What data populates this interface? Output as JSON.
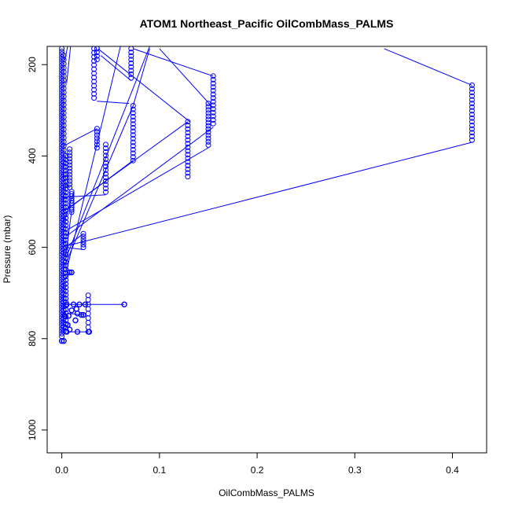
{
  "chart_data": {
    "type": "scatter",
    "title": "ATOM1 Northeast_Pacific OilCombMass_PALMS",
    "xlabel": "OilCombMass_PALMS",
    "ylabel": "Pressure (mbar)",
    "xlim": [
      -0.015,
      0.435
    ],
    "ylim": [
      1050,
      160
    ],
    "y_reversed": true,
    "x_ticks": [
      0.0,
      0.1,
      0.2,
      0.3,
      0.4
    ],
    "x_tick_labels": [
      "0.0",
      "0.1",
      "0.2",
      "0.3",
      "0.4"
    ],
    "y_ticks": [
      200,
      400,
      600,
      800,
      1000
    ],
    "y_tick_labels": [
      "200",
      "400",
      "600",
      "800",
      "1000"
    ],
    "grid": false,
    "marker": "open-circle",
    "series_color": "#0000ff",
    "columns": [
      {
        "x": 0.0,
        "p_from": 165,
        "p_to": 800,
        "step": 6
      },
      {
        "x": 0.002,
        "p_from": 180,
        "p_to": 790,
        "step": 9
      },
      {
        "x": 0.004,
        "p_from": 400,
        "p_to": 790,
        "step": 8
      },
      {
        "x": 0.008,
        "p_from": 385,
        "p_to": 470,
        "step": 7
      },
      {
        "x": 0.01,
        "p_from": 478,
        "p_to": 525,
        "step": 5
      },
      {
        "x": 0.022,
        "p_from": 570,
        "p_to": 605,
        "step": 6
      },
      {
        "x": 0.027,
        "p_from": 705,
        "p_to": 785,
        "step": 10
      },
      {
        "x": 0.033,
        "p_from": 165,
        "p_to": 280,
        "step": 9
      },
      {
        "x": 0.036,
        "p_from": 165,
        "p_to": 190,
        "step": 8
      },
      {
        "x": 0.036,
        "p_from": 340,
        "p_to": 385,
        "step": 7
      },
      {
        "x": 0.045,
        "p_from": 375,
        "p_to": 485,
        "step": 8
      },
      {
        "x": 0.071,
        "p_from": 165,
        "p_to": 235,
        "step": 8
      },
      {
        "x": 0.073,
        "p_from": 290,
        "p_to": 410,
        "step": 8
      },
      {
        "x": 0.129,
        "p_from": 325,
        "p_to": 450,
        "step": 8
      },
      {
        "x": 0.15,
        "p_from": 285,
        "p_to": 380,
        "step": 7
      },
      {
        "x": 0.155,
        "p_from": 225,
        "p_to": 335,
        "step": 8
      },
      {
        "x": 0.42,
        "p_from": 245,
        "p_to": 365,
        "step": 8
      }
    ],
    "points": [
      {
        "x": 0.0,
        "y": 805
      },
      {
        "x": 0.002,
        "y": 805
      },
      {
        "x": 0.008,
        "y": 655
      },
      {
        "x": 0.01,
        "y": 655
      },
      {
        "x": 0.005,
        "y": 725
      },
      {
        "x": 0.012,
        "y": 725
      },
      {
        "x": 0.018,
        "y": 725
      },
      {
        "x": 0.024,
        "y": 725
      },
      {
        "x": 0.064,
        "y": 725
      },
      {
        "x": 0.015,
        "y": 735
      },
      {
        "x": 0.016,
        "y": 745
      },
      {
        "x": 0.02,
        "y": 748
      },
      {
        "x": 0.022,
        "y": 748
      },
      {
        "x": 0.014,
        "y": 760
      },
      {
        "x": 0.016,
        "y": 785
      },
      {
        "x": 0.028,
        "y": 785
      },
      {
        "x": 0.004,
        "y": 768
      },
      {
        "x": 0.006,
        "y": 770
      },
      {
        "x": 0.005,
        "y": 785
      },
      {
        "x": 0.008,
        "y": 780
      },
      {
        "x": 0.003,
        "y": 750
      },
      {
        "x": 0.007,
        "y": 750
      },
      {
        "x": 0.01,
        "y": 738
      }
    ],
    "line_segments": [
      [
        [
          0.002,
          378
        ],
        [
          0.036,
          340
        ]
      ],
      [
        [
          0.003,
          598
        ],
        [
          0.42,
          370
        ]
      ],
      [
        [
          0.005,
          575
        ],
        [
          0.155,
          337
        ]
      ],
      [
        [
          0.007,
          560
        ],
        [
          0.15,
          382
        ]
      ],
      [
        [
          0.003,
          520
        ],
        [
          0.129,
          325
        ]
      ],
      [
        [
          0.01,
          510
        ],
        [
          0.073,
          410
        ]
      ],
      [
        [
          0.002,
          490
        ],
        [
          0.045,
          485
        ]
      ],
      [
        [
          0.003,
          540
        ],
        [
          0.012,
          480
        ]
      ],
      [
        [
          0.004,
          600
        ],
        [
          0.022,
          605
        ]
      ],
      [
        [
          0.007,
          595
        ],
        [
          0.022,
          570
        ]
      ],
      [
        [
          0.003,
          640
        ],
        [
          0.073,
          290
        ]
      ],
      [
        [
          0.004,
          625
        ],
        [
          0.09,
          160
        ]
      ],
      [
        [
          0.005,
          650
        ],
        [
          0.06,
          160
        ]
      ],
      [
        [
          0.004,
          620
        ],
        [
          0.01,
          520
        ]
      ],
      [
        [
          0.003,
          670
        ],
        [
          0.009,
          655
        ]
      ],
      [
        [
          0.004,
          462
        ],
        [
          0.008,
          470
        ]
      ],
      [
        [
          0.003,
          190
        ],
        [
          0.006,
          160
        ]
      ],
      [
        [
          0.005,
          240
        ],
        [
          0.009,
          160
        ]
      ],
      [
        [
          0.036,
          280
        ],
        [
          0.069,
          285
        ]
      ],
      [
        [
          0.037,
          165
        ],
        [
          0.131,
          325
        ]
      ],
      [
        [
          0.04,
          180
        ],
        [
          0.071,
          235
        ]
      ],
      [
        [
          0.073,
          165
        ],
        [
          0.155,
          225
        ]
      ],
      [
        [
          0.09,
          165
        ],
        [
          0.073,
          290
        ]
      ],
      [
        [
          0.1,
          165
        ],
        [
          0.155,
          295
        ]
      ],
      [
        [
          0.33,
          165
        ],
        [
          0.42,
          245
        ]
      ],
      [
        [
          0.005,
          725
        ],
        [
          0.064,
          725
        ]
      ],
      [
        [
          0.008,
          745
        ],
        [
          0.022,
          748
        ]
      ],
      [
        [
          0.006,
          785
        ],
        [
          0.028,
          785
        ]
      ]
    ]
  }
}
